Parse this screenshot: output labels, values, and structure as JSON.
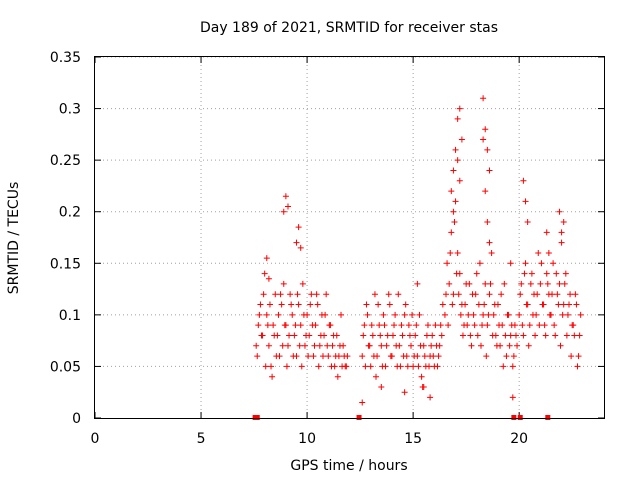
{
  "chart_data": {
    "type": "scatter",
    "title": "Day 189 of 2021, SRMTID for receiver stas",
    "xlabel": "GPS time / hours",
    "ylabel": "SRMTID / TECUs",
    "xlim": [
      0,
      24
    ],
    "ylim": [
      0,
      0.35
    ],
    "x_ticks": [
      0,
      5,
      10,
      15,
      20
    ],
    "y_ticks": [
      "0",
      "0.05",
      "0.1",
      "0.15",
      "0.2",
      "0.25",
      "0.3",
      "0.35"
    ],
    "grid": true,
    "marker": "plus",
    "color": "#ff0000",
    "zero_markers_x": [
      7.55,
      7.65,
      12.45,
      19.75,
      20.05,
      21.35
    ],
    "series": [
      {
        "name": "SRMTID",
        "x": [
          7.6,
          7.7,
          7.8,
          7.9,
          8.0,
          8.1,
          8.2,
          8.3,
          8.4,
          8.5,
          8.6,
          8.7,
          8.8,
          8.9,
          9.0,
          9.1,
          9.2,
          9.3,
          9.4,
          9.5,
          9.6,
          9.7,
          9.8,
          9.9,
          10.0,
          10.1,
          10.2,
          10.3,
          10.4,
          10.5,
          10.6,
          10.7,
          10.8,
          10.9,
          11.0,
          11.1,
          11.2,
          11.3,
          11.4,
          11.5,
          11.6,
          11.7,
          11.8,
          11.9,
          7.65,
          7.75,
          7.85,
          7.95,
          8.05,
          8.15,
          8.25,
          8.35,
          8.45,
          8.55,
          8.65,
          8.75,
          8.85,
          8.95,
          9.05,
          9.15,
          9.25,
          9.35,
          9.45,
          9.55,
          9.65,
          9.75,
          9.85,
          9.95,
          10.05,
          10.15,
          10.25,
          10.35,
          10.45,
          10.55,
          10.65,
          10.75,
          10.85,
          10.95,
          11.05,
          11.15,
          11.25,
          11.35,
          11.45,
          11.55,
          11.65,
          11.75,
          11.85,
          8.1,
          8.2,
          8.9,
          9.0,
          9.1,
          9.5,
          9.6,
          9.7,
          12.6,
          12.7,
          12.8,
          12.9,
          13.0,
          13.1,
          13.2,
          13.3,
          13.4,
          13.5,
          13.6,
          13.7,
          13.8,
          13.9,
          14.0,
          14.1,
          14.2,
          14.3,
          14.4,
          14.5,
          14.6,
          14.7,
          14.8,
          14.9,
          15.0,
          15.1,
          15.2,
          15.3,
          15.4,
          15.5,
          15.6,
          15.7,
          15.8,
          15.9,
          16.0,
          16.1,
          16.2,
          16.3,
          16.4,
          12.65,
          12.75,
          12.85,
          12.95,
          13.05,
          13.15,
          13.25,
          13.35,
          13.45,
          13.55,
          13.65,
          13.75,
          13.85,
          13.95,
          14.05,
          14.15,
          14.25,
          14.35,
          14.45,
          14.55,
          14.65,
          14.75,
          14.85,
          14.95,
          15.05,
          15.15,
          15.25,
          15.35,
          15.45,
          15.55,
          15.65,
          15.75,
          15.85,
          15.95,
          16.05,
          16.15,
          16.25,
          16.35,
          12.6,
          13.5,
          14.6,
          15.2,
          15.5,
          15.8,
          16.5,
          16.6,
          16.7,
          16.8,
          16.9,
          17.0,
          17.1,
          17.2,
          17.3,
          17.4,
          17.5,
          17.6,
          17.7,
          17.8,
          17.9,
          18.0,
          18.1,
          18.2,
          18.3,
          18.4,
          18.5,
          18.6,
          18.7,
          18.8,
          18.9,
          19.0,
          19.1,
          19.2,
          19.3,
          19.4,
          19.5,
          19.6,
          19.7,
          19.8,
          19.9,
          16.55,
          16.65,
          16.75,
          16.85,
          16.95,
          17.05,
          17.15,
          17.25,
          17.35,
          17.45,
          17.55,
          17.65,
          17.75,
          17.85,
          17.95,
          18.05,
          18.15,
          18.25,
          18.35,
          18.45,
          18.55,
          18.65,
          18.75,
          18.85,
          18.95,
          19.05,
          19.15,
          19.25,
          19.35,
          19.45,
          19.55,
          19.65,
          19.75,
          19.85,
          16.9,
          17.0,
          17.1,
          17.2,
          17.3,
          17.1,
          17.2,
          16.8,
          16.9,
          18.3,
          18.4,
          18.5,
          18.6,
          18.4,
          18.5,
          18.3,
          18.6,
          20.0,
          20.1,
          20.2,
          20.3,
          20.4,
          20.5,
          20.6,
          20.7,
          20.8,
          20.9,
          21.0,
          21.1,
          21.2,
          21.3,
          21.4,
          21.5,
          21.6,
          21.7,
          21.8,
          21.9,
          22.0,
          22.1,
          22.2,
          22.3,
          22.4,
          22.5,
          22.6,
          22.7,
          22.8,
          22.9,
          20.05,
          20.15,
          20.25,
          20.35,
          20.45,
          20.55,
          20.65,
          20.75,
          20.85,
          20.95,
          21.05,
          21.15,
          21.25,
          21.35,
          21.45,
          21.55,
          21.65,
          21.75,
          21.85,
          21.95,
          22.05,
          22.15,
          22.25,
          22.35,
          22.45,
          22.55,
          22.65,
          22.75,
          22.85,
          20.2,
          20.3,
          20.4,
          21.9,
          22.0,
          22.1,
          21.3,
          21.4,
          19.6,
          19.7
        ],
        "y": [
          0.07,
          0.09,
          0.11,
          0.08,
          0.14,
          0.1,
          0.07,
          0.05,
          0.09,
          0.12,
          0.08,
          0.06,
          0.11,
          0.13,
          0.09,
          0.07,
          0.12,
          0.1,
          0.08,
          0.06,
          0.11,
          0.09,
          0.13,
          0.07,
          0.1,
          0.08,
          0.12,
          0.06,
          0.09,
          0.11,
          0.07,
          0.1,
          0.08,
          0.12,
          0.06,
          0.09,
          0.07,
          0.05,
          0.08,
          0.06,
          0.1,
          0.07,
          0.05,
          0.06,
          0.06,
          0.1,
          0.08,
          0.12,
          0.05,
          0.09,
          0.11,
          0.04,
          0.08,
          0.06,
          0.1,
          0.12,
          0.07,
          0.09,
          0.05,
          0.08,
          0.11,
          0.06,
          0.09,
          0.12,
          0.07,
          0.05,
          0.1,
          0.08,
          0.06,
          0.11,
          0.09,
          0.07,
          0.12,
          0.05,
          0.08,
          0.06,
          0.1,
          0.07,
          0.09,
          0.05,
          0.08,
          0.06,
          0.04,
          0.07,
          0.05,
          0.06,
          0.05,
          0.155,
          0.135,
          0.2,
          0.215,
          0.205,
          0.17,
          0.185,
          0.165,
          0.06,
          0.09,
          0.11,
          0.07,
          0.05,
          0.08,
          0.12,
          0.06,
          0.09,
          0.07,
          0.1,
          0.05,
          0.08,
          0.11,
          0.06,
          0.09,
          0.07,
          0.12,
          0.05,
          0.08,
          0.1,
          0.06,
          0.09,
          0.07,
          0.05,
          0.08,
          0.06,
          0.1,
          0.04,
          0.07,
          0.05,
          0.09,
          0.06,
          0.08,
          0.05,
          0.07,
          0.06,
          0.09,
          0.11,
          0.08,
          0.05,
          0.1,
          0.07,
          0.09,
          0.06,
          0.04,
          0.11,
          0.08,
          0.05,
          0.09,
          0.07,
          0.12,
          0.06,
          0.08,
          0.1,
          0.05,
          0.07,
          0.09,
          0.06,
          0.11,
          0.05,
          0.08,
          0.1,
          0.06,
          0.09,
          0.05,
          0.07,
          0.03,
          0.06,
          0.08,
          0.05,
          0.07,
          0.06,
          0.09,
          0.05,
          0.07,
          0.08,
          0.015,
          0.03,
          0.025,
          0.13,
          0.03,
          0.02,
          0.1,
          0.15,
          0.13,
          0.18,
          0.12,
          0.21,
          0.16,
          0.14,
          0.11,
          0.09,
          0.13,
          0.1,
          0.08,
          0.12,
          0.09,
          0.14,
          0.11,
          0.07,
          0.1,
          0.13,
          0.09,
          0.12,
          0.16,
          0.1,
          0.08,
          0.11,
          0.07,
          0.09,
          0.13,
          0.06,
          0.1,
          0.08,
          0.05,
          0.09,
          0.07,
          0.12,
          0.09,
          0.16,
          0.11,
          0.19,
          0.14,
          0.12,
          0.1,
          0.08,
          0.11,
          0.09,
          0.13,
          0.07,
          0.1,
          0.12,
          0.08,
          0.15,
          0.09,
          0.11,
          0.06,
          0.1,
          0.13,
          0.08,
          0.11,
          0.07,
          0.09,
          0.12,
          0.05,
          0.08,
          0.1,
          0.07,
          0.09,
          0.06,
          0.08,
          0.24,
          0.26,
          0.29,
          0.3,
          0.27,
          0.25,
          0.23,
          0.22,
          0.2,
          0.31,
          0.28,
          0.26,
          0.24,
          0.22,
          0.19,
          0.27,
          0.17,
          0.1,
          0.13,
          0.08,
          0.15,
          0.11,
          0.09,
          0.14,
          0.12,
          0.1,
          0.16,
          0.13,
          0.11,
          0.09,
          0.14,
          0.12,
          0.1,
          0.15,
          0.08,
          0.12,
          0.13,
          0.18,
          0.11,
          0.14,
          0.1,
          0.12,
          0.09,
          0.08,
          0.11,
          0.06,
          0.1,
          0.12,
          0.09,
          0.14,
          0.11,
          0.07,
          0.13,
          0.1,
          0.08,
          0.12,
          0.09,
          0.15,
          0.11,
          0.08,
          0.13,
          0.1,
          0.12,
          0.09,
          0.14,
          0.11,
          0.07,
          0.1,
          0.13,
          0.08,
          0.11,
          0.06,
          0.09,
          0.12,
          0.05,
          0.08,
          0.23,
          0.21,
          0.19,
          0.2,
          0.17,
          0.19,
          0.18,
          0.16,
          0.15,
          0.02
        ]
      }
    ]
  }
}
